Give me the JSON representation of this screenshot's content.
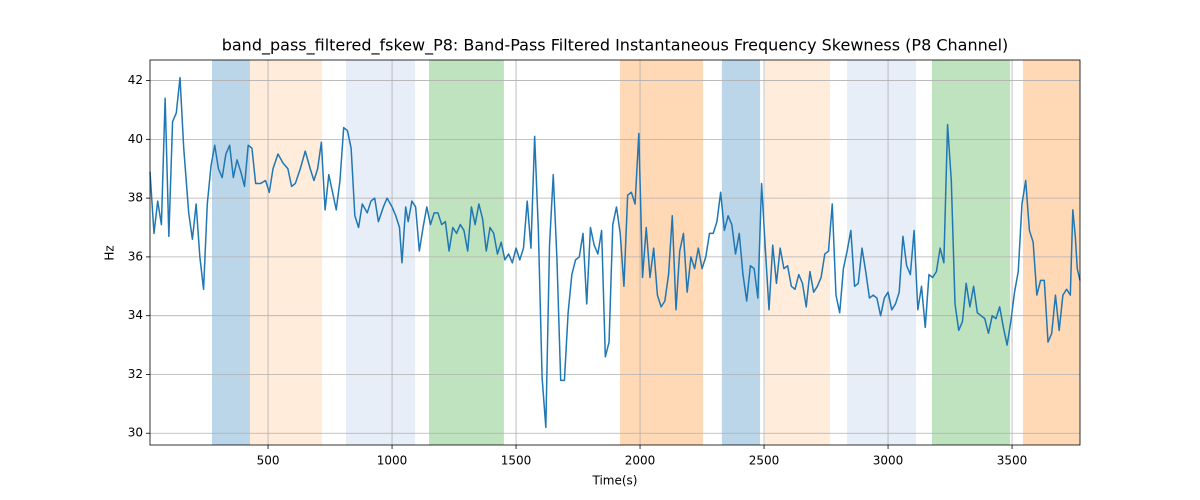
{
  "chart_data": {
    "type": "line",
    "title": "band_pass_filtered_fskew_P8: Band-Pass Filtered Instantaneous Frequency Skewness (P8 Channel)",
    "xlabel": "Time(s)",
    "ylabel": "Hz",
    "xlim": [
      24,
      3774
    ],
    "ylim": [
      29.6,
      42.7
    ],
    "xticks": [
      500,
      1000,
      1500,
      2000,
      2500,
      3000,
      3500
    ],
    "yticks": [
      30,
      32,
      34,
      36,
      38,
      40,
      42
    ],
    "grid": true,
    "spans": [
      {
        "start": 274,
        "end": 427,
        "color": "#1f77b4",
        "alpha": 0.3
      },
      {
        "start": 427,
        "end": 718,
        "color": "#ff7f0e",
        "alpha": 0.15
      },
      {
        "start": 814,
        "end": 1093,
        "color": "#aec7e8",
        "alpha": 0.3
      },
      {
        "start": 1149,
        "end": 1451,
        "color": "#2ca02c",
        "alpha": 0.3
      },
      {
        "start": 1919,
        "end": 2254,
        "color": "#ff7f0e",
        "alpha": 0.3
      },
      {
        "start": 2330,
        "end": 2484,
        "color": "#1f77b4",
        "alpha": 0.3
      },
      {
        "start": 2504,
        "end": 2766,
        "color": "#ff7f0e",
        "alpha": 0.15
      },
      {
        "start": 2835,
        "end": 3113,
        "color": "#aec7e8",
        "alpha": 0.3
      },
      {
        "start": 3177,
        "end": 3492,
        "color": "#2ca02c",
        "alpha": 0.3
      },
      {
        "start": 3544,
        "end": 3774,
        "color": "#ff7f0e",
        "alpha": 0.3
      }
    ],
    "x": [
      24,
      40,
      55,
      70,
      85,
      100,
      115,
      130,
      145,
      160,
      180,
      195,
      210,
      225,
      240,
      255,
      270,
      285,
      300,
      315,
      330,
      345,
      360,
      375,
      390,
      405,
      420,
      435,
      450,
      470,
      490,
      505,
      520,
      540,
      560,
      580,
      595,
      610,
      630,
      650,
      670,
      685,
      700,
      715,
      730,
      745,
      760,
      775,
      790,
      805,
      820,
      835,
      850,
      865,
      880,
      900,
      915,
      930,
      945,
      965,
      980,
      1000,
      1015,
      1030,
      1040,
      1055,
      1065,
      1080,
      1095,
      1110,
      1125,
      1140,
      1155,
      1170,
      1185,
      1200,
      1215,
      1230,
      1245,
      1260,
      1275,
      1290,
      1305,
      1320,
      1335,
      1350,
      1365,
      1380,
      1395,
      1410,
      1425,
      1440,
      1455,
      1470,
      1485,
      1500,
      1515,
      1530,
      1545,
      1560,
      1575,
      1590,
      1605,
      1620,
      1635,
      1650,
      1665,
      1680,
      1695,
      1710,
      1725,
      1740,
      1755,
      1770,
      1785,
      1800,
      1815,
      1830,
      1845,
      1860,
      1875,
      1890,
      1905,
      1920,
      1935,
      1950,
      1965,
      1980,
      1995,
      2010,
      2025,
      2040,
      2055,
      2070,
      2085,
      2100,
      2115,
      2130,
      2145,
      2160,
      2175,
      2190,
      2205,
      2220,
      2235,
      2250,
      2265,
      2280,
      2295,
      2310,
      2325,
      2340,
      2355,
      2370,
      2385,
      2400,
      2415,
      2430,
      2445,
      2460,
      2475,
      2490,
      2505,
      2520,
      2535,
      2550,
      2565,
      2580,
      2595,
      2610,
      2625,
      2640,
      2655,
      2670,
      2685,
      2700,
      2715,
      2730,
      2745,
      2760,
      2775,
      2790,
      2805,
      2820,
      2835,
      2850,
      2865,
      2880,
      2895,
      2910,
      2925,
      2940,
      2955,
      2970,
      2985,
      3000,
      3015,
      3030,
      3045,
      3060,
      3075,
      3090,
      3105,
      3120,
      3135,
      3150,
      3165,
      3180,
      3195,
      3210,
      3225,
      3240,
      3255,
      3270,
      3285,
      3300,
      3315,
      3330,
      3345,
      3360,
      3375,
      3390,
      3405,
      3420,
      3435,
      3450,
      3465,
      3480,
      3495,
      3510,
      3525,
      3540,
      3555,
      3570,
      3585,
      3600,
      3615,
      3630,
      3645,
      3660,
      3675,
      3690,
      3705,
      3720,
      3735,
      3745,
      3755,
      3763,
      3774
    ],
    "series": [
      {
        "color": "#1f77b4",
        "values": [
          38.9,
          36.8,
          37.9,
          37.1,
          41.4,
          36.7,
          40.6,
          40.9,
          42.1,
          39.7,
          37.5,
          36.6,
          37.8,
          36.0,
          34.9,
          37.8,
          39.1,
          39.8,
          39.0,
          38.7,
          39.5,
          39.8,
          38.7,
          39.3,
          38.9,
          38.4,
          39.8,
          39.7,
          38.5,
          38.5,
          38.6,
          38.2,
          39.0,
          39.5,
          39.2,
          39.0,
          38.4,
          38.5,
          39.0,
          39.6,
          39.0,
          38.6,
          39.0,
          39.9,
          37.6,
          38.8,
          38.2,
          37.6,
          38.6,
          40.4,
          40.3,
          39.7,
          37.4,
          37.0,
          37.8,
          37.5,
          37.9,
          38.0,
          37.2,
          37.7,
          38.0,
          37.7,
          37.4,
          37.0,
          35.8,
          37.7,
          37.2,
          37.9,
          37.7,
          36.2,
          37.0,
          37.7,
          37.1,
          37.5,
          37.5,
          37.1,
          37.2,
          36.2,
          37.0,
          36.8,
          37.1,
          36.9,
          36.2,
          37.7,
          37.1,
          37.8,
          37.3,
          36.2,
          37.0,
          36.8,
          36.1,
          36.5,
          35.9,
          36.1,
          35.8,
          36.3,
          35.9,
          36.3,
          37.9,
          36.3,
          40.1,
          36.9,
          31.9,
          30.2,
          36.4,
          38.8,
          35.9,
          31.8,
          31.8,
          34.1,
          35.4,
          35.9,
          36.0,
          36.8,
          34.4,
          37.0,
          36.4,
          36.1,
          36.9,
          32.6,
          33.1,
          37.1,
          37.7,
          36.8,
          35.0,
          38.1,
          38.2,
          37.8,
          40.2,
          35.3,
          37.0,
          35.3,
          36.3,
          34.7,
          34.3,
          34.5,
          35.4,
          37.4,
          34.2,
          36.2,
          36.8,
          34.8,
          36.0,
          35.6,
          36.3,
          35.6,
          36.0,
          36.8,
          36.8,
          37.2,
          38.2,
          36.9,
          37.4,
          37.1,
          36.1,
          36.8,
          35.4,
          34.5,
          35.7,
          35.6,
          34.6,
          38.5,
          36.3,
          34.2,
          36.4,
          35.1,
          36.3,
          35.6,
          35.7,
          35.0,
          34.9,
          35.4,
          35.1,
          34.3,
          35.5,
          34.8,
          35.0,
          35.3,
          36.1,
          36.2,
          37.8,
          34.7,
          34.1,
          35.6,
          36.2,
          36.9,
          35.0,
          35.1,
          36.3,
          35.5,
          34.6,
          34.7,
          34.6,
          34.0,
          34.6,
          34.8,
          34.2,
          34.4,
          34.8,
          36.7,
          35.7,
          35.4,
          36.9,
          34.2,
          35.0,
          33.6,
          35.4,
          35.3,
          35.5,
          36.3,
          35.8,
          40.5,
          38.6,
          34.4,
          33.5,
          33.8,
          35.1,
          34.3,
          35.0,
          34.1,
          34.0,
          33.9,
          33.4,
          34.0,
          33.9,
          34.3,
          33.6,
          33.0,
          33.8,
          34.8,
          35.5,
          37.8,
          38.6,
          36.9,
          36.5,
          34.7,
          35.2,
          35.2,
          33.1,
          33.4,
          34.7,
          33.5,
          34.7,
          34.9,
          34.7,
          37.6,
          36.7,
          35.6,
          35.2
        ]
      }
    ]
  }
}
